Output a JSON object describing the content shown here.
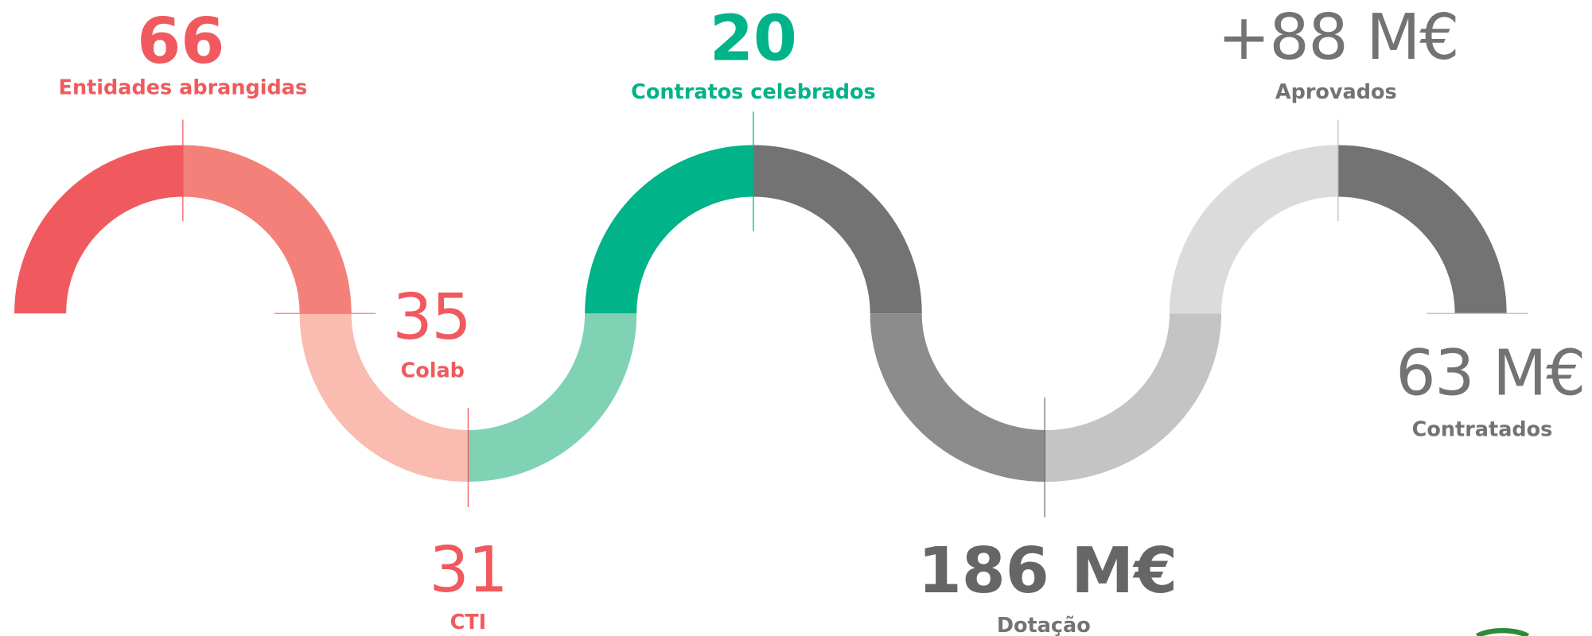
{
  "stats": [
    {
      "value": "66",
      "label": "Entidades abrangidas"
    },
    {
      "value": "35",
      "label": "Colab"
    },
    {
      "value": "31",
      "label": "CTI"
    },
    {
      "value": "20",
      "label": "Contratos celebrados"
    },
    {
      "value": "186 M€",
      "label": "Dotação"
    },
    {
      "value": "+88 M€",
      "label": "Aprovados"
    },
    {
      "value": "63 M€",
      "label": "Contratados"
    }
  ]
}
